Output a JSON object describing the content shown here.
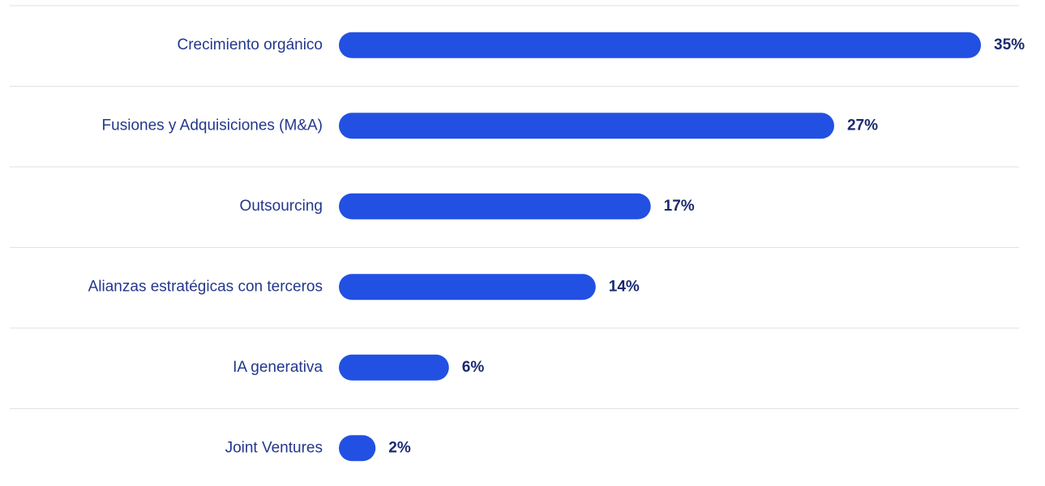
{
  "chart_data": {
    "type": "bar",
    "orientation": "horizontal",
    "categories": [
      "Crecimiento orgánico",
      "Fusiones y Adquisiciones (M&A)",
      "Outsourcing",
      "Alianzas estratégicas con terceros",
      "IA generativa",
      "Joint Ventures"
    ],
    "values": [
      35,
      27,
      17,
      14,
      6,
      2
    ],
    "value_labels": [
      "35%",
      "27%",
      "17%",
      "14%",
      "6%",
      "2%"
    ],
    "color": "#2250e3"
  }
}
